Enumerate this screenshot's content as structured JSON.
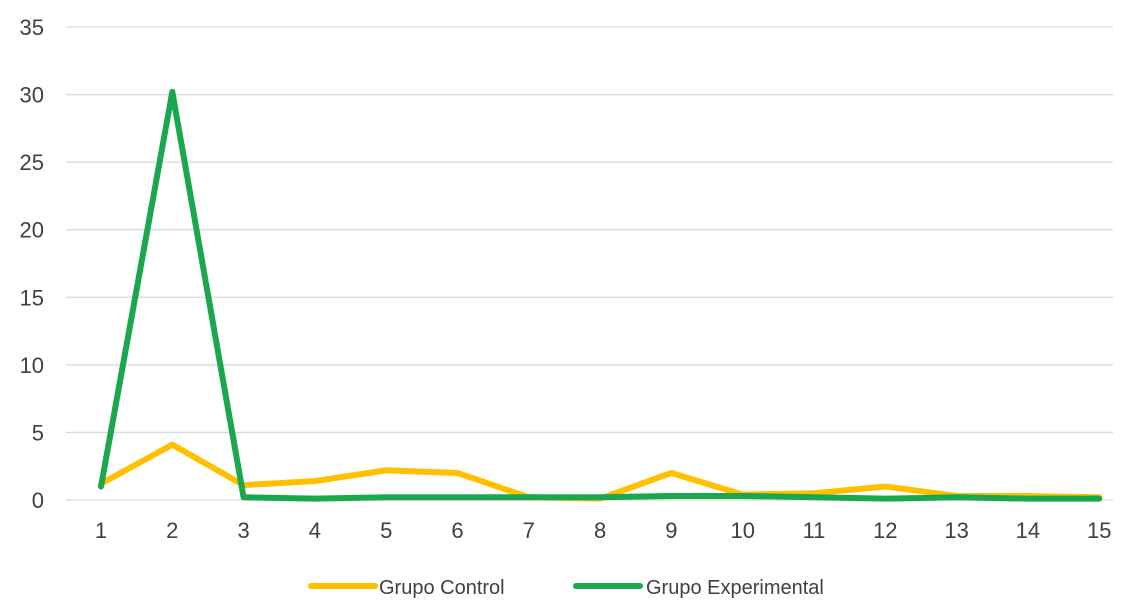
{
  "chart_data": {
    "type": "line",
    "title": "",
    "xlabel": "",
    "ylabel": "",
    "categories": [
      "1",
      "2",
      "3",
      "4",
      "5",
      "6",
      "7",
      "8",
      "9",
      "10",
      "11",
      "12",
      "13",
      "14",
      "15"
    ],
    "ylim": [
      0,
      35
    ],
    "yticks": [
      0,
      5,
      10,
      15,
      20,
      25,
      30,
      35
    ],
    "grid": true,
    "legend": "bottom",
    "series": [
      {
        "name": "Grupo Control",
        "color": "#FFC000",
        "values": [
          1.2,
          4.1,
          1.1,
          1.4,
          2.2,
          2.0,
          0.2,
          0.1,
          2.0,
          0.4,
          0.5,
          1.0,
          0.3,
          0.3,
          0.2
        ]
      },
      {
        "name": "Grupo Experimental",
        "color": "#1AA84F",
        "values": [
          1.0,
          30.2,
          0.2,
          0.1,
          0.2,
          0.2,
          0.2,
          0.2,
          0.3,
          0.3,
          0.2,
          0.1,
          0.2,
          0.1,
          0.1
        ]
      }
    ]
  }
}
